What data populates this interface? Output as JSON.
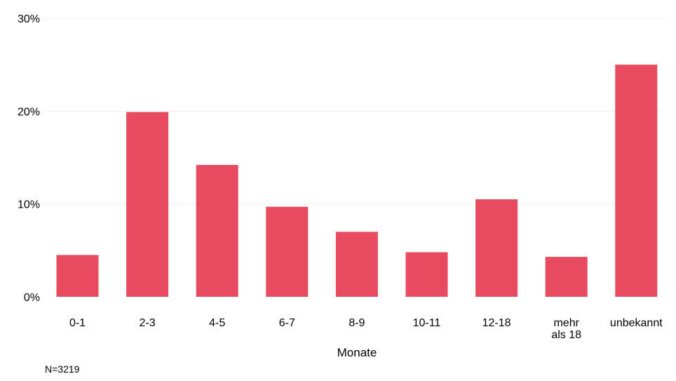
{
  "chart_data": {
    "type": "bar",
    "categories": [
      "0-1",
      "2-3",
      "4-5",
      "6-7",
      "8-9",
      "10-11",
      "12-18",
      "mehr als 18",
      "unbekannt"
    ],
    "category_lines": [
      [
        "0-1"
      ],
      [
        "2-3"
      ],
      [
        "4-5"
      ],
      [
        "6-7"
      ],
      [
        "8-9"
      ],
      [
        "10-11"
      ],
      [
        "12-18"
      ],
      [
        "mehr",
        "als 18"
      ],
      [
        "unbekannt"
      ]
    ],
    "values": [
      4.5,
      19.9,
      14.2,
      9.7,
      7.0,
      4.8,
      10.5,
      4.3,
      25.0
    ],
    "unit": "%",
    "xlabel": "Monate",
    "ylabel": "",
    "ylim": [
      0,
      30
    ],
    "yticks": [
      0,
      10,
      20,
      30
    ],
    "ytick_labels": [
      "0%",
      "10%",
      "20%",
      "30%"
    ],
    "grid": true,
    "legend": "none",
    "bar_color": "#e84a5f",
    "grid_color": "#efefef",
    "note": "N=3219"
  }
}
